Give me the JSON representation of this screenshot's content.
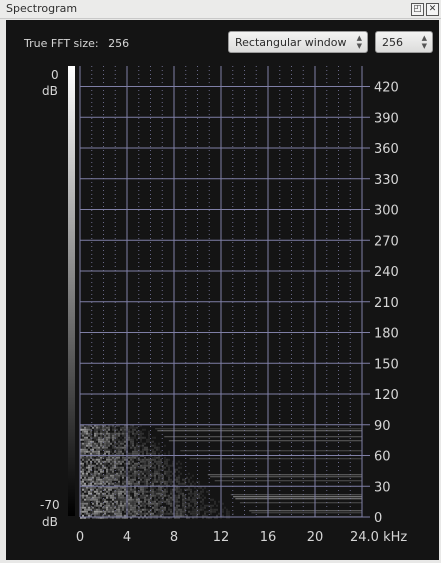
{
  "window": {
    "title": "Spectrogram"
  },
  "controls": {
    "fft_size_label": "True FFT size:",
    "fft_size_value": "256",
    "window_function": "Rectangular window",
    "fft_size_select": "256"
  },
  "scale": {
    "top_value": "0",
    "top_unit": "dB",
    "bottom_value": "-70",
    "bottom_unit": "dB"
  },
  "chart_data": {
    "type": "heatmap",
    "xlabel": "kHz",
    "x_ticks": [
      "0",
      "4",
      "8",
      "12",
      "16",
      "20",
      "24.0 kHz"
    ],
    "xlim": [
      0,
      24
    ],
    "y_ticks": [
      "0",
      "30",
      "60",
      "90",
      "120",
      "150",
      "180",
      "210",
      "240",
      "270",
      "300",
      "330",
      "360",
      "390",
      "420"
    ],
    "ylim": [
      0,
      440
    ],
    "color_range_db": [
      -70,
      0
    ],
    "grid": true,
    "signal_band_y": [
      0,
      90
    ],
    "signal_band_max_khz": 15
  },
  "colors": {
    "background": "#141414",
    "grid": "#7f7fa6",
    "labels": "#d6d6d6"
  }
}
